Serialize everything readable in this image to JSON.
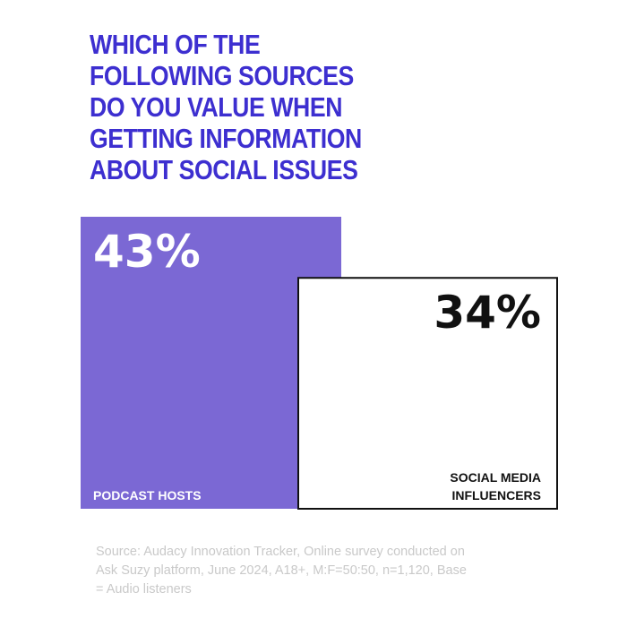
{
  "title_lines": [
    "WHICH OF THE",
    "FOLLOWING SOURCES",
    "DO YOU VALUE WHEN",
    "GETTING INFORMATION",
    "ABOUT SOCIAL ISSUES"
  ],
  "source_note": "Source:  Audacy Innovation Tracker, Online survey conducted on Ask Suzy platform, June 2024, A18+, M:F=50:50, n=1,120, Base = Audio listeners",
  "colors": {
    "title": "#3d2fd0",
    "bar_fill_primary": "#7b68d4",
    "bar_fill_secondary": "#ffffff",
    "bar_outline": "#111111",
    "label_on_primary": "#ffffff",
    "label_on_secondary": "#111111",
    "source_text": "#c9c9c9"
  },
  "chart_data": {
    "type": "bar",
    "title": "WHICH OF THE FOLLOWING SOURCES DO YOU VALUE WHEN GETTING INFORMATION ABOUT SOCIAL ISSUES",
    "categories": [
      "PODCAST HOSTS",
      "SOCIAL MEDIA INFLUENCERS"
    ],
    "values": [
      43,
      34
    ],
    "value_labels": [
      "43%",
      "34%"
    ],
    "unit": "%",
    "ylim": [
      0,
      43
    ],
    "grid": false,
    "legend": "none",
    "bar_styles": [
      "filled",
      "outlined"
    ]
  }
}
